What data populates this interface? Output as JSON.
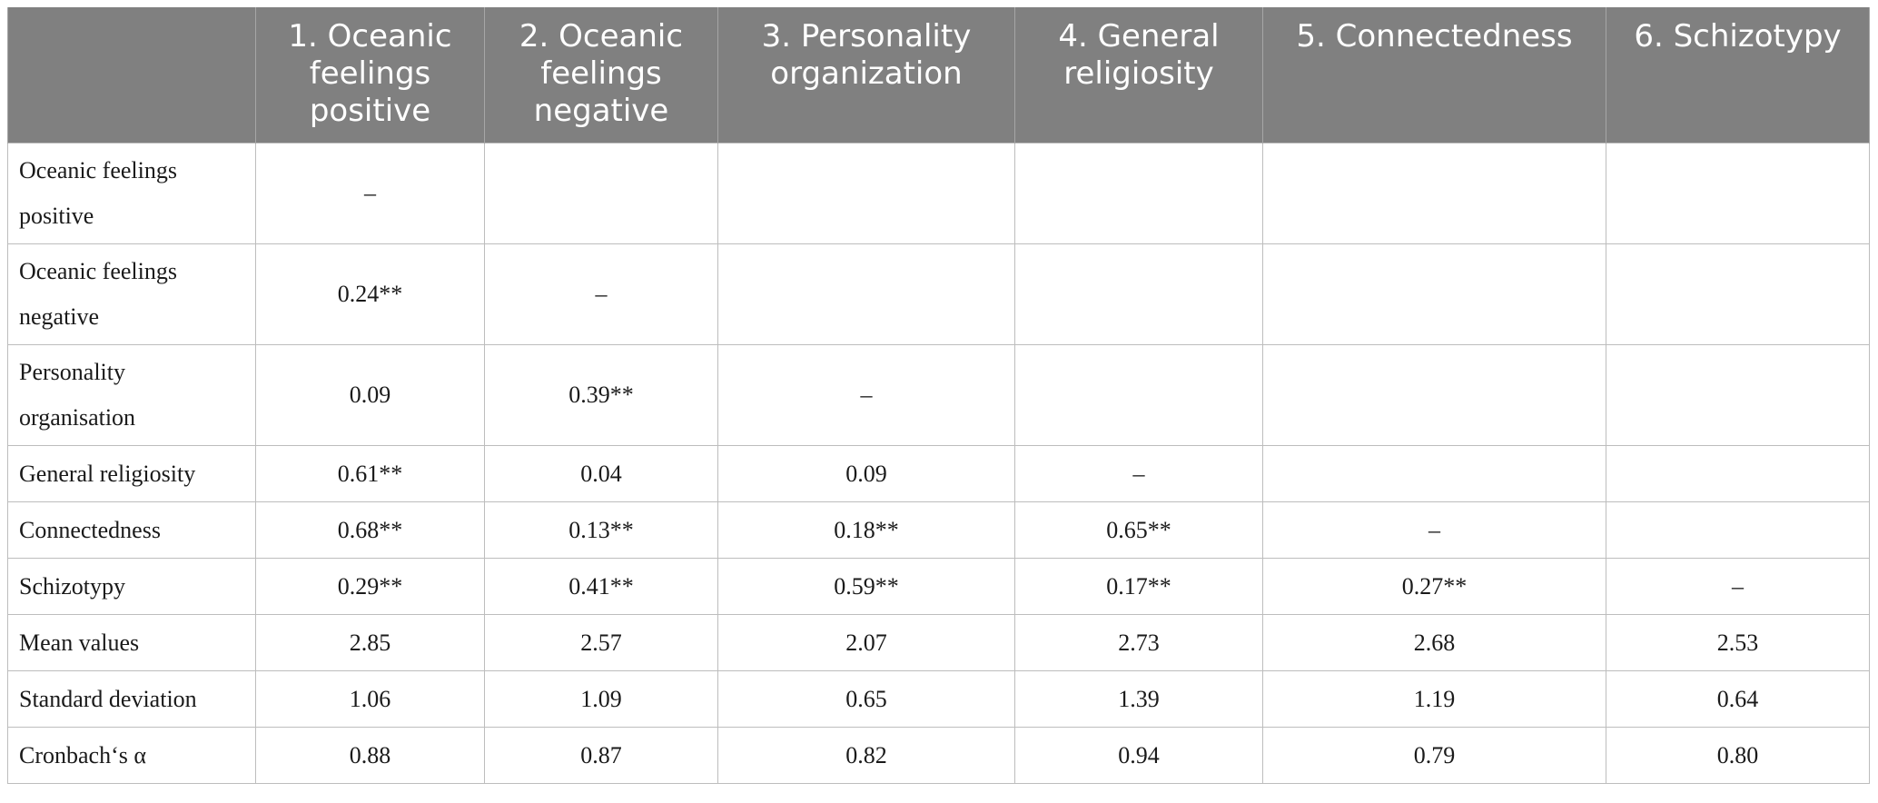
{
  "table": {
    "headers": [
      "",
      "1. Oceanic feelings positive",
      "2. Oceanic feelings negative",
      "3. Personality organization",
      "4. General religiosity",
      "5. Connectedness",
      "6. Schizotypy"
    ],
    "rows": [
      {
        "label": "Oceanic feelings positive",
        "cells": [
          "–",
          "",
          "",
          "",
          "",
          ""
        ]
      },
      {
        "label": "Oceanic feelings negative",
        "cells": [
          "0.24**",
          "–",
          "",
          "",
          "",
          ""
        ]
      },
      {
        "label": "Personality organisation",
        "cells": [
          "0.09",
          "0.39**",
          "–",
          "",
          "",
          ""
        ]
      },
      {
        "label": "General religiosity",
        "cells": [
          "0.61**",
          "0.04",
          "0.09",
          "–",
          "",
          ""
        ]
      },
      {
        "label": "Connectedness",
        "cells": [
          "0.68**",
          "0.13**",
          "0.18**",
          "0.65**",
          "–",
          ""
        ]
      },
      {
        "label": "Schizotypy",
        "cells": [
          "0.29**",
          "0.41**",
          "0.59**",
          "0.17**",
          "0.27**",
          "–"
        ]
      },
      {
        "label": "Mean values",
        "cells": [
          "2.85",
          "2.57",
          "2.07",
          "2.73",
          "2.68",
          "2.53"
        ]
      },
      {
        "label": "Standard deviation",
        "cells": [
          "1.06",
          "1.09",
          "0.65",
          "1.39",
          "1.19",
          "0.64"
        ]
      },
      {
        "label": "Cronbach‘s α",
        "cells": [
          "0.88",
          "0.87",
          "0.82",
          "0.94",
          "0.79",
          "0.80"
        ]
      }
    ]
  }
}
